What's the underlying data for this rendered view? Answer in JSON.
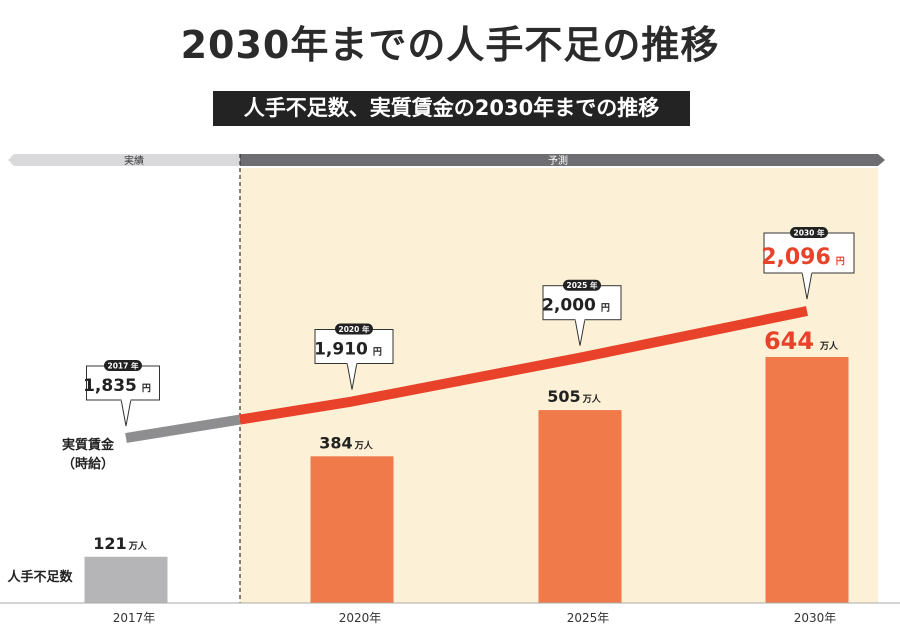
{
  "title": "2030年までの人手不足の推移",
  "subtitle": "人手不足数、実質賃金の2030年までの推移",
  "banner": {
    "actual": "実績",
    "forecast": "予測"
  },
  "colors": {
    "bar_actual": "#b5b5b8",
    "bar_forecast": "#f07a4a",
    "wage_actual": "#8e8e91",
    "wage_forecast": "#e8432a",
    "forecast_bg": "#fcf0d6",
    "highlight_text": "#e8432a"
  },
  "chart_data": {
    "type": "bar",
    "categories": [
      "2017年",
      "2020年",
      "2025年",
      "2030年"
    ],
    "series": [
      {
        "name": "人手不足数",
        "values": [
          121,
          384,
          505,
          644
        ],
        "unit": "万人"
      },
      {
        "name": "実質賃金（時給）",
        "type": "line",
        "values": [
          1835,
          1910,
          2000,
          2096
        ],
        "unit": "円"
      }
    ],
    "bar_labels": [
      "121",
      "384",
      "505",
      "644"
    ],
    "wage_labels": [
      "1,835",
      "1,910",
      "2,000",
      "2,096"
    ],
    "wage_tags": [
      "2017 年",
      "2020 年",
      "2025 年",
      "2030 年"
    ],
    "legend": {
      "bars": "人手不足数",
      "line_line1": "実質賃金",
      "line_line2": "（時給）"
    }
  }
}
